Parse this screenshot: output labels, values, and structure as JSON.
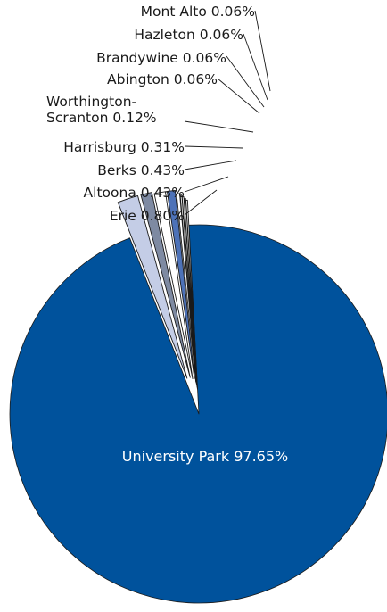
{
  "chart_data": {
    "type": "pie",
    "title": "",
    "label_format": "{name} {pct}",
    "slices": [
      {
        "name": "University Park",
        "value": 97.65,
        "label": "97.65%",
        "color": "#00529c",
        "exploded": false
      },
      {
        "name": "Erie",
        "value": 0.8,
        "label": "0.80%",
        "color": "#c4cde6",
        "exploded": true
      },
      {
        "name": "Altoona",
        "value": 0.43,
        "label": "0.43%",
        "color": "#7e8aa2",
        "exploded": true
      },
      {
        "name": "Berks",
        "value": 0.43,
        "label": "0.43%",
        "color": "#ffffff",
        "exploded": true
      },
      {
        "name": "Harrisburg",
        "value": 0.31,
        "label": "0.31%",
        "color": "#4d72b8",
        "exploded": true
      },
      {
        "name": "Worthington-Scranton",
        "value": 0.12,
        "label": "0.12%",
        "color": "#ffffff",
        "exploded": true
      },
      {
        "name": "Abington",
        "value": 0.06,
        "label": "0.06%",
        "color": "#ffffff",
        "exploded": true
      },
      {
        "name": "Brandywine",
        "value": 0.06,
        "label": "0.06%",
        "color": "#ffffff",
        "exploded": true
      },
      {
        "name": "Hazleton",
        "value": 0.06,
        "label": "0.06%",
        "color": "#ffffff",
        "exploded": true
      },
      {
        "name": "Mont Alto",
        "value": 0.06,
        "label": "0.06%",
        "color": "#ffffff",
        "exploded": true
      }
    ],
    "main_label_text": "University Park  97.65%",
    "leader_labels": [
      {
        "lines": [
          "Mont Alto 0.06%"
        ],
        "slice": "Mont Alto"
      },
      {
        "lines": [
          "Hazleton 0.06%"
        ],
        "slice": "Hazleton"
      },
      {
        "lines": [
          "Brandywine 0.06%"
        ],
        "slice": "Brandywine"
      },
      {
        "lines": [
          "Abington 0.06%"
        ],
        "slice": "Abington"
      },
      {
        "lines": [
          "Worthington-",
          "Scranton 0.12%"
        ],
        "slice": "Worthington-Scranton"
      },
      {
        "lines": [
          "Harrisburg 0.31%"
        ],
        "slice": "Harrisburg"
      },
      {
        "lines": [
          "Berks 0.43%"
        ],
        "slice": "Berks"
      },
      {
        "lines": [
          "Altoona 0.43%"
        ],
        "slice": "Altoona"
      },
      {
        "lines": [
          "Erie 0.80%"
        ],
        "slice": "Erie"
      }
    ]
  }
}
